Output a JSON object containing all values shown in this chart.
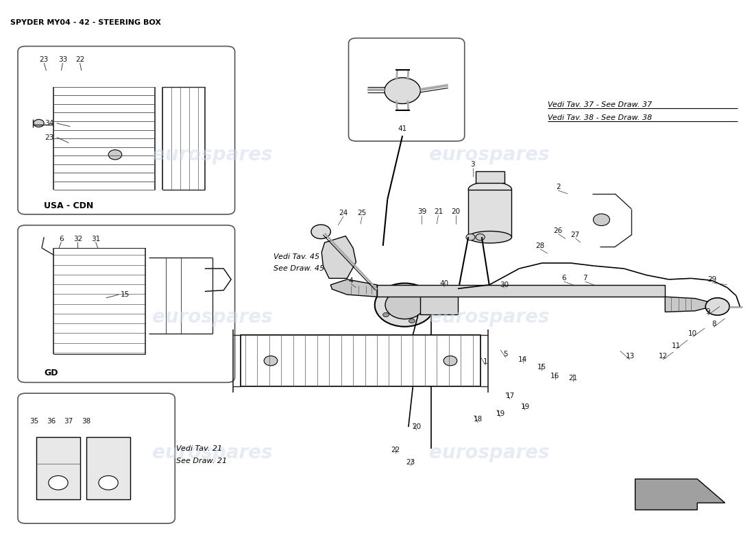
{
  "title": "SPYDER MY04 - 42 - STEERING BOX",
  "bg_color": "#ffffff",
  "line_color": "#000000",
  "watermark_color": "#d0d8e8",
  "fig_width": 11.0,
  "fig_height": 8.0,
  "dpi": 100,
  "title_fontsize": 8,
  "annotation_fontsize": 7.5,
  "italic_fontsize": 8,
  "usa_cdn_label": "USA - CDN",
  "gd_label": "GD",
  "vedi_tav_37": "Vedi Tav. 37 - See Draw. 37",
  "vedi_tav_38": "Vedi Tav. 38 - See Draw. 38",
  "vedi_tav_45_line1": "Vedi Tav. 45",
  "vedi_tav_45_line2": "See Draw. 45",
  "vedi_tav_21_line1": "Vedi Tav. 21",
  "vedi_tav_21_line2": "See Draw. 21"
}
